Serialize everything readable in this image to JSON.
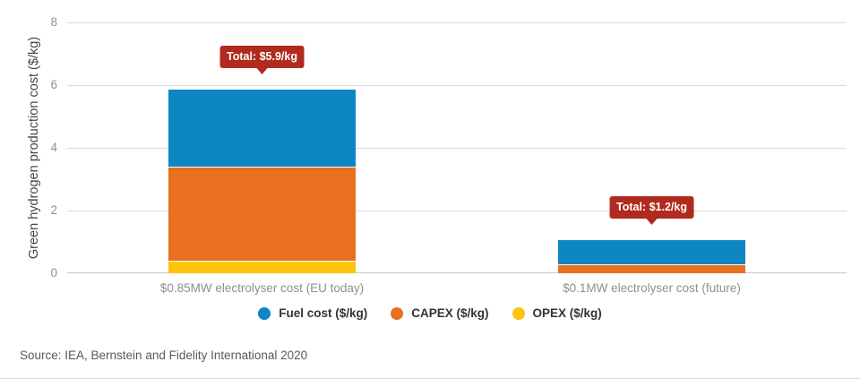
{
  "chart_data": {
    "type": "bar",
    "stacked": true,
    "title": "",
    "xlabel": "",
    "ylabel": "Green hydrogen production cost ($/kg)",
    "ylim": [
      0,
      8
    ],
    "yticks": [
      0,
      2,
      4,
      6,
      8
    ],
    "grid": true,
    "legend_position": "bottom",
    "categories": [
      "$0.85MW electrolyser cost (EU today)",
      "$0.1MW electrolyser cost (future)"
    ],
    "series": [
      {
        "key": "opex",
        "name": "OPEX ($/kg)",
        "color": "#fdc40a",
        "values": [
          0.4,
          0
        ]
      },
      {
        "key": "capex",
        "name": "CAPEX ($/kg)",
        "color": "#e8701e",
        "values": [
          3.0,
          0.3
        ]
      },
      {
        "key": "fuel-cost",
        "name": "Fuel cost ($/kg)",
        "color": "#0e86c4",
        "values": [
          2.5,
          0.8
        ]
      }
    ],
    "totals": [
      "Total: $5.9/kg",
      "Total: $1.2/kg"
    ],
    "annotation_color": "#b02a1d",
    "legend_entries": [
      {
        "label": "Fuel cost ($/kg)",
        "color": "#0e86c4"
      },
      {
        "label": "CAPEX ($/kg)",
        "color": "#e8701e"
      },
      {
        "label": "OPEX ($/kg)",
        "color": "#fdc40a"
      }
    ]
  },
  "source_note": "Source: IEA, Bernstein and Fidelity International 2020"
}
